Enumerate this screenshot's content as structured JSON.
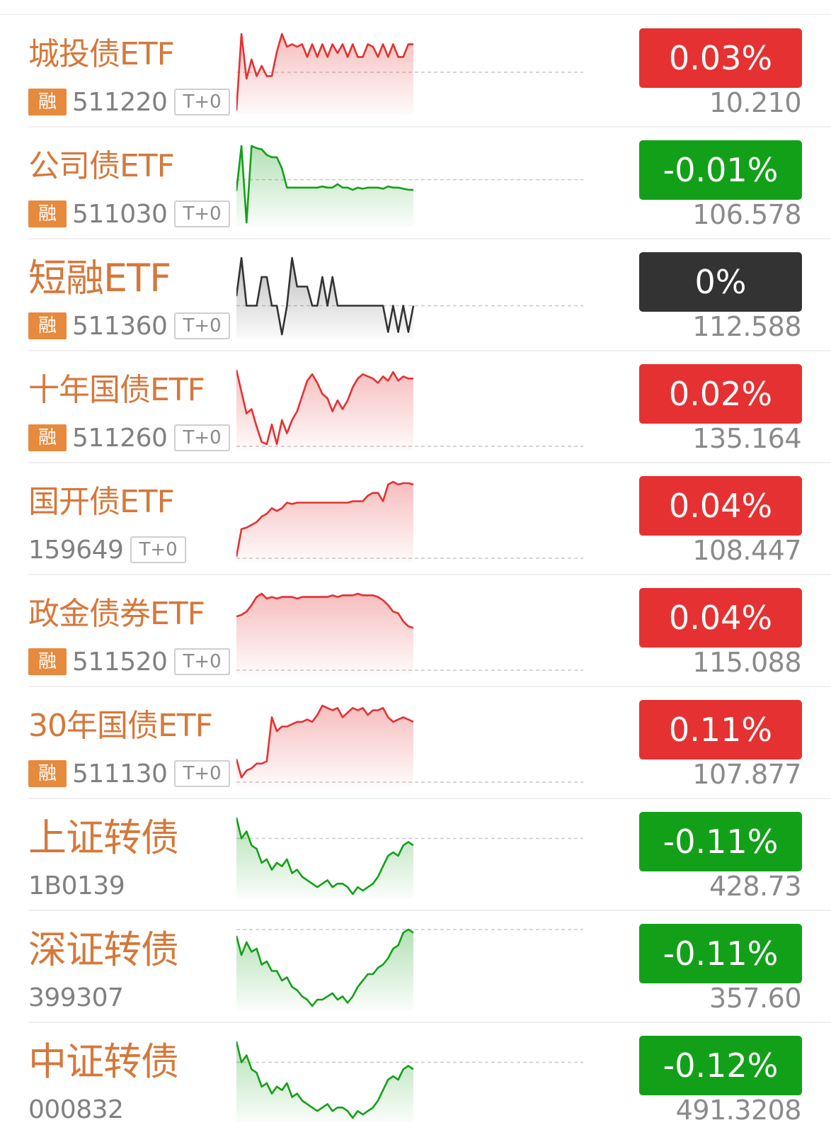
{
  "colors": {
    "up": "#e53131",
    "down": "#13a019",
    "flat": "#333333",
    "name": "#d5783b",
    "rong_bg": "#e68a3e"
  },
  "rong_label": "融",
  "t0_label": "T+0",
  "items": [
    {
      "name": "城投债ETF",
      "rong": true,
      "code": "511220",
      "t0": true,
      "change": "0.03%",
      "direction": "up",
      "price": "10.210",
      "series": [
        -0.03,
        0.03,
        -0.005,
        0.01,
        -0.003,
        0.005,
        -0.003,
        -0.003,
        0.016,
        0.03,
        0.02,
        0.022,
        0.02,
        0.022,
        0.012,
        0.022,
        0.012,
        0.022,
        0.012,
        0.022,
        0.015,
        0.022,
        0.012,
        0.022,
        0.012,
        0.012,
        0.022,
        0.02,
        0.012,
        0.022,
        0.012,
        0.022,
        0.012,
        0.012,
        0.022,
        0.022
      ],
      "baseline": 0
    },
    {
      "name": "公司债ETF",
      "rong": true,
      "code": "511030",
      "t0": true,
      "change": "-0.01%",
      "direction": "down",
      "price": "106.578",
      "series": [
        -0.01,
        0.03,
        -0.038,
        0.03,
        0.028,
        0.027,
        0.022,
        0.02,
        0.02,
        0.01,
        -0.007,
        -0.007,
        -0.007,
        -0.007,
        -0.007,
        -0.007,
        -0.007,
        -0.006,
        -0.007,
        -0.007,
        -0.004,
        -0.007,
        -0.007,
        -0.009,
        -0.007,
        -0.008,
        -0.007,
        -0.007,
        -0.007,
        -0.008,
        -0.006,
        -0.007,
        -0.007,
        -0.008,
        -0.009,
        -0.009
      ],
      "baseline": 0
    },
    {
      "name": "短融ETF",
      "rong": true,
      "code": "511360",
      "t0": true,
      "change": "0%",
      "direction": "flat",
      "price": "112.588",
      "series": [
        0.004,
        0.02,
        0.0,
        0.0,
        0.0,
        0.012,
        0.012,
        0.0,
        0.0,
        -0.012,
        0.0,
        0.02,
        0.008,
        0.008,
        0.008,
        0.0,
        0.0,
        0.012,
        0.0,
        0.012,
        0.0,
        0.0,
        0.0,
        0.0,
        0.0,
        0.0,
        0.0,
        0.0,
        0.0,
        0.0,
        -0.011,
        0.0,
        -0.011,
        0.0,
        -0.011,
        0.0
      ],
      "baseline": 0
    },
    {
      "name": "十年国债ETF",
      "rong": true,
      "code": "511260",
      "t0": true,
      "change": "0.02%",
      "direction": "up",
      "price": "135.164",
      "series": [
        0.03,
        0.02,
        0.01,
        0.012,
        0.004,
        -0.003,
        -0.004,
        0.005,
        -0.004,
        0.007,
        0.001,
        0.007,
        0.011,
        0.018,
        0.025,
        0.028,
        0.024,
        0.019,
        0.017,
        0.011,
        0.016,
        0.012,
        0.016,
        0.022,
        0.026,
        0.028,
        0.027,
        0.026,
        0.024,
        0.027,
        0.025,
        0.029,
        0.025,
        0.027,
        0.026,
        0.026
      ],
      "baseline": -0.005
    },
    {
      "name": "国开债ETF",
      "rong": false,
      "code": "159649",
      "t0": true,
      "change": "0.04%",
      "direction": "up",
      "price": "108.447",
      "series": [
        -0.005,
        0.015,
        0.016,
        0.018,
        0.02,
        0.024,
        0.026,
        0.03,
        0.028,
        0.03,
        0.034,
        0.033,
        0.034,
        0.034,
        0.034,
        0.034,
        0.034,
        0.034,
        0.034,
        0.034,
        0.034,
        0.034,
        0.034,
        0.035,
        0.035,
        0.035,
        0.039,
        0.041,
        0.041,
        0.035,
        0.047,
        0.049,
        0.047,
        0.048,
        0.048,
        0.047
      ],
      "baseline": -0.006
    },
    {
      "name": "政金债券ETF",
      "rong": true,
      "code": "511520",
      "t0": true,
      "change": "0.04%",
      "direction": "up",
      "price": "115.088",
      "series": [
        0.03,
        0.031,
        0.033,
        0.037,
        0.042,
        0.044,
        0.041,
        0.042,
        0.041,
        0.042,
        0.042,
        0.042,
        0.041,
        0.042,
        0.042,
        0.042,
        0.042,
        0.042,
        0.042,
        0.043,
        0.042,
        0.043,
        0.043,
        0.043,
        0.044,
        0.043,
        0.043,
        0.043,
        0.042,
        0.04,
        0.037,
        0.033,
        0.032,
        0.027,
        0.024,
        0.023
      ],
      "baseline": -0.003
    },
    {
      "name": "30年国债ETF",
      "rong": true,
      "code": "511130",
      "t0": true,
      "change": "0.11%",
      "direction": "up",
      "price": "107.877",
      "series": [
        0.04,
        0.032,
        0.035,
        0.036,
        0.038,
        0.038,
        0.039,
        0.058,
        0.052,
        0.054,
        0.054,
        0.055,
        0.056,
        0.056,
        0.057,
        0.056,
        0.059,
        0.063,
        0.062,
        0.061,
        0.062,
        0.058,
        0.06,
        0.062,
        0.061,
        0.062,
        0.059,
        0.061,
        0.061,
        0.062,
        0.058,
        0.056,
        0.057,
        0.058,
        0.057,
        0.056
      ],
      "baseline": 0.03
    },
    {
      "name": "上证转债",
      "rong": false,
      "code": "1B0139",
      "t0": false,
      "change": "-0.11%",
      "direction": "down",
      "price": "428.73",
      "series": [
        0.0,
        -0.06,
        -0.04,
        -0.08,
        -0.09,
        -0.13,
        -0.12,
        -0.15,
        -0.13,
        -0.14,
        -0.12,
        -0.16,
        -0.15,
        -0.17,
        -0.18,
        -0.19,
        -0.2,
        -0.19,
        -0.18,
        -0.2,
        -0.19,
        -0.19,
        -0.2,
        -0.22,
        -0.2,
        -0.21,
        -0.2,
        -0.19,
        -0.17,
        -0.14,
        -0.11,
        -0.1,
        -0.11,
        -0.08,
        -0.07,
        -0.08
      ],
      "baseline": -0.06
    },
    {
      "name": "深证转债",
      "rong": false,
      "code": "399307",
      "t0": false,
      "change": "-0.11%",
      "direction": "down",
      "price": "357.60",
      "series": [
        0.0,
        -0.06,
        -0.02,
        -0.05,
        -0.04,
        -0.09,
        -0.08,
        -0.11,
        -0.11,
        -0.14,
        -0.13,
        -0.16,
        -0.17,
        -0.19,
        -0.2,
        -0.22,
        -0.2,
        -0.2,
        -0.19,
        -0.18,
        -0.2,
        -0.19,
        -0.21,
        -0.19,
        -0.16,
        -0.14,
        -0.12,
        -0.12,
        -0.1,
        -0.09,
        -0.07,
        -0.04,
        -0.03,
        0.01,
        0.02,
        0.01
      ],
      "baseline": 0.02
    },
    {
      "name": "中证转债",
      "rong": false,
      "code": "000832",
      "t0": false,
      "change": "-0.12%",
      "direction": "down",
      "price": "491.3208",
      "series": [
        0.0,
        -0.06,
        -0.04,
        -0.08,
        -0.09,
        -0.13,
        -0.12,
        -0.15,
        -0.13,
        -0.14,
        -0.12,
        -0.16,
        -0.15,
        -0.17,
        -0.18,
        -0.19,
        -0.2,
        -0.19,
        -0.18,
        -0.2,
        -0.19,
        -0.19,
        -0.2,
        -0.22,
        -0.2,
        -0.21,
        -0.2,
        -0.19,
        -0.17,
        -0.14,
        -0.11,
        -0.1,
        -0.11,
        -0.08,
        -0.07,
        -0.08
      ],
      "baseline": -0.06
    }
  ]
}
